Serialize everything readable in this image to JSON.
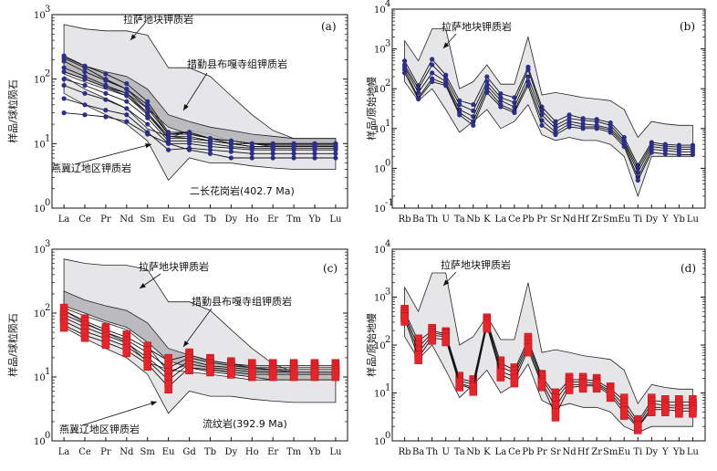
{
  "chart_data": [
    {
      "type": "line",
      "panel": "(a)",
      "xlabel": "",
      "ylabel": "样品/球粒陨石",
      "yscale": "log",
      "ylim": [
        1,
        1000
      ],
      "y_ticks": [
        "10",
        "10",
        "10",
        "10"
      ],
      "y_tick_exponents": [
        "0",
        "1",
        "2",
        "3"
      ],
      "categories": [
        "La",
        "Ce",
        "Pr",
        "Nd",
        "Sm",
        "Eu",
        "Gd",
        "Tb",
        "Dy",
        "Ho",
        "Er",
        "Tm",
        "Yb",
        "Lu"
      ],
      "fields": [
        {
          "name": "拉萨地块钾质岩",
          "upper": [
            700,
            600,
            560,
            560,
            480,
            150,
            150,
            110,
            55,
            28,
            16,
            12,
            12,
            12
          ],
          "lower": [
            120,
            90,
            70,
            55,
            30,
            12,
            16,
            14,
            11,
            10,
            9,
            8,
            8,
            8
          ]
        },
        {
          "name": "措勤县布嘎寺组钾质岩",
          "upper": [
            220,
            160,
            130,
            110,
            70,
            28,
            22,
            18,
            16,
            14,
            13,
            12,
            12,
            12
          ],
          "lower": [
            130,
            100,
            75,
            60,
            35,
            18,
            14,
            12,
            11,
            10,
            9,
            9,
            9,
            9
          ]
        },
        {
          "name": "燕冀辽地区钾质岩",
          "upper": [
            110,
            70,
            50,
            35,
            17,
            13,
            12,
            11,
            10,
            9,
            9,
            9,
            9,
            9
          ],
          "lower": [
            60,
            40,
            28,
            20,
            11,
            2.7,
            6,
            5,
            5,
            4.5,
            4.2,
            4,
            4,
            4
          ]
        }
      ],
      "series": [
        {
          "values": [
            230,
            160,
            120,
            85,
            45,
            15,
            15,
            12,
            11,
            10,
            10,
            10,
            10,
            10
          ]
        },
        {
          "values": [
            210,
            150,
            100,
            70,
            40,
            14,
            15,
            12,
            11,
            10,
            10,
            10,
            10,
            10
          ]
        },
        {
          "values": [
            190,
            130,
            95,
            70,
            35,
            14,
            14,
            12,
            10,
            10,
            9.5,
            9.5,
            9.5,
            9.5
          ]
        },
        {
          "values": [
            150,
            110,
            80,
            60,
            30,
            13,
            13,
            11,
            10,
            9,
            9,
            9,
            9,
            9
          ]
        },
        {
          "values": [
            130,
            100,
            75,
            55,
            28,
            12,
            12,
            11,
            10,
            9,
            9,
            9,
            9,
            9
          ]
        },
        {
          "values": [
            100,
            80,
            60,
            45,
            25,
            11,
            11,
            10,
            9,
            8.5,
            8.5,
            8.5,
            8.5,
            8.5
          ]
        },
        {
          "values": [
            80,
            60,
            48,
            35,
            20,
            10,
            10,
            9,
            8.5,
            8,
            8,
            8,
            8,
            8
          ]
        },
        {
          "values": [
            50,
            40,
            33,
            28,
            15,
            8,
            8.5,
            8,
            7.5,
            7,
            7,
            7,
            7,
            7
          ]
        },
        {
          "values": [
            30,
            28,
            26,
            22,
            14,
            10,
            8,
            7,
            6,
            6,
            6,
            6,
            6,
            6
          ]
        }
      ],
      "annotations": [
        "拉萨地块钾质岩",
        "措勤县布嘎寺组钾质岩",
        "燕冀辽地区钾质岩"
      ],
      "sample_label": "二长花岗岩(402.7 Ma)",
      "colors": {
        "sample": "#2b2e8c",
        "lhasa_fill": "#e6e6e8",
        "dark_fill": "#b3b3b6"
      }
    },
    {
      "type": "line",
      "panel": "(b)",
      "xlabel": "",
      "ylabel": "样品/原始地幔",
      "yscale": "log",
      "ylim": [
        0.1,
        10000
      ],
      "y_ticks": [
        "10",
        "10",
        "10",
        "10",
        "10",
        "10"
      ],
      "y_tick_exponents": [
        "-1",
        "0",
        "1",
        "2",
        "3",
        "4"
      ],
      "categories": [
        "Rb",
        "Ba",
        "Th",
        "U",
        "Ta",
        "Nb",
        "K",
        "La",
        "Ce",
        "Pb",
        "Pr",
        "Sr",
        "Nd",
        "Hf",
        "Zr",
        "Sm",
        "Eu",
        "Ti",
        "Dy",
        "Y",
        "Yb",
        "Lu"
      ],
      "fields": [
        {
          "name": "拉萨地块钾质岩",
          "upper": [
            1600,
            500,
            3200,
            3200,
            100,
            150,
            400,
            130,
            130,
            2000,
            70,
            80,
            70,
            60,
            55,
            50,
            30,
            6,
            15,
            13,
            12,
            12
          ],
          "lower": [
            150,
            50,
            100,
            30,
            8,
            15,
            30,
            10,
            15,
            40,
            7,
            5,
            6,
            5,
            5,
            4,
            2,
            0.2,
            2,
            2,
            2,
            2
          ]
        }
      ],
      "series": [
        {
          "values": [
            500,
            120,
            550,
            220,
            50,
            40,
            200,
            75,
            60,
            350,
            35,
            15,
            22,
            18,
            17,
            14,
            6,
            1.2,
            4.5,
            4,
            3.8,
            3.8
          ]
        },
        {
          "values": [
            400,
            100,
            400,
            180,
            40,
            28,
            150,
            60,
            45,
            300,
            28,
            12,
            18,
            16,
            15,
            12,
            5,
            1,
            4,
            3.6,
            3.4,
            3.4
          ]
        },
        {
          "values": [
            350,
            80,
            250,
            150,
            30,
            20,
            120,
            50,
            35,
            200,
            22,
            10,
            15,
            13,
            12,
            10,
            4.5,
            0.8,
            3.5,
            3.2,
            3,
            3
          ]
        },
        {
          "values": [
            300,
            60,
            180,
            130,
            25,
            15,
            100,
            40,
            28,
            150,
            16,
            8,
            13,
            11,
            11,
            9,
            4,
            0.6,
            3,
            2.8,
            2.6,
            2.6
          ]
        },
        {
          "values": [
            250,
            55,
            150,
            120,
            22,
            12,
            80,
            35,
            25,
            120,
            12,
            7,
            11,
            10,
            10,
            8,
            3.5,
            0.5,
            2.5,
            2.3,
            2.2,
            2.2
          ]
        }
      ],
      "annotations": [
        "拉萨地块钾质岩"
      ],
      "colors": {
        "sample": "#2b2e8c",
        "lhasa_fill": "#e6e6e8"
      }
    },
    {
      "type": "line",
      "panel": "(c)",
      "xlabel": "",
      "ylabel": "样品/球粒陨石",
      "yscale": "log",
      "ylim": [
        1,
        1000
      ],
      "y_ticks": [
        "10",
        "10",
        "10",
        "10"
      ],
      "y_tick_exponents": [
        "0",
        "1",
        "2",
        "3"
      ],
      "categories": [
        "La",
        "Ce",
        "Pr",
        "Nd",
        "Sm",
        "Eu",
        "Gd",
        "Tb",
        "Dy",
        "Ho",
        "Er",
        "Tm",
        "Yb",
        "Lu"
      ],
      "fields": [
        {
          "name": "拉萨地块钾质岩",
          "upper": [
            700,
            600,
            560,
            560,
            480,
            150,
            150,
            110,
            55,
            28,
            16,
            12,
            12,
            12
          ],
          "lower": [
            120,
            90,
            70,
            55,
            30,
            12,
            16,
            14,
            11,
            10,
            9,
            8,
            8,
            8
          ]
        },
        {
          "name": "措勤县布嘎寺组钾质岩",
          "upper": [
            220,
            160,
            130,
            110,
            70,
            28,
            22,
            18,
            16,
            14,
            13,
            12,
            12,
            12
          ],
          "lower": [
            130,
            100,
            75,
            60,
            35,
            18,
            14,
            12,
            11,
            10,
            9,
            9,
            9,
            9
          ]
        },
        {
          "name": "燕冀辽地区钾质岩",
          "upper": [
            110,
            70,
            50,
            35,
            17,
            13,
            12,
            11,
            10,
            9,
            9,
            9,
            9,
            9
          ],
          "lower": [
            60,
            40,
            28,
            20,
            11,
            2.7,
            6,
            5,
            5,
            4.5,
            4.2,
            4,
            4,
            4
          ]
        }
      ],
      "series": [
        {
          "values": [
            110,
            75,
            55,
            42,
            28,
            18,
            22,
            18,
            16,
            15,
            15,
            15,
            15,
            15
          ]
        },
        {
          "values": [
            95,
            68,
            50,
            38,
            24,
            14,
            20,
            17,
            15,
            14,
            14,
            14,
            14,
            14
          ]
        },
        {
          "values": [
            85,
            60,
            45,
            34,
            20,
            11,
            18,
            15,
            14,
            13,
            13,
            13,
            13,
            13
          ]
        },
        {
          "values": [
            75,
            52,
            40,
            30,
            18,
            9,
            16,
            14,
            13,
            12,
            12,
            12,
            12,
            12
          ]
        },
        {
          "values": [
            65,
            45,
            35,
            26,
            16,
            7,
            14,
            13,
            12,
            11,
            11,
            11,
            11,
            11
          ]
        }
      ],
      "annotations": [
        "拉萨地块钾质岩",
        "措勤县布嘎寺组钾质岩",
        "燕冀辽地区钾质岩"
      ],
      "sample_label": "流纹岩(392.9 Ma)",
      "colors": {
        "sample": "#e8232a",
        "lhasa_fill": "#e6e6e8",
        "dark_fill": "#b3b3b6"
      }
    },
    {
      "type": "line",
      "panel": "(d)",
      "xlabel": "",
      "ylabel": "样品/原始地幔",
      "yscale": "log",
      "ylim": [
        1,
        10000
      ],
      "y_ticks": [
        "10",
        "10",
        "10",
        "10",
        "10"
      ],
      "y_tick_exponents": [
        "0",
        "1",
        "2",
        "3",
        "4"
      ],
      "categories": [
        "Rb",
        "Ba",
        "Th",
        "U",
        "Ta",
        "Nb",
        "K",
        "La",
        "Ce",
        "Pb",
        "Pr",
        "Sr",
        "Nd",
        "Hf",
        "Zr",
        "Sm",
        "Eu",
        "Ti",
        "Dy",
        "Y",
        "Yb",
        "Lu"
      ],
      "fields": [
        {
          "name": "拉萨地块钾质岩",
          "upper": [
            1600,
            500,
            3200,
            3200,
            100,
            150,
            400,
            130,
            130,
            2000,
            70,
            80,
            70,
            60,
            55,
            50,
            30,
            6,
            15,
            13,
            12,
            12
          ],
          "lower": [
            150,
            50,
            100,
            30,
            8,
            15,
            30,
            10,
            15,
            40,
            7,
            5,
            6,
            5,
            5,
            4,
            2,
            1.5,
            2,
            2,
            2,
            2
          ]
        }
      ],
      "series": [
        {
          "values": [
            500,
            120,
            200,
            170,
            20,
            17,
            330,
            42,
            30,
            130,
            22,
            9,
            19,
            19,
            18,
            12,
            7,
            2.5,
            7,
            6.5,
            6.5,
            6.5
          ]
        },
        {
          "values": [
            450,
            90,
            180,
            160,
            18,
            15,
            300,
            35,
            26,
            110,
            20,
            7,
            17,
            17,
            16,
            11,
            5.5,
            2.2,
            6,
            5.5,
            5.5,
            5.5
          ]
        },
        {
          "values": [
            400,
            70,
            160,
            150,
            16,
            13,
            280,
            28,
            22,
            95,
            17,
            5,
            15,
            15,
            15,
            10,
            4.5,
            2,
            5,
            5,
            4.8,
            4.8
          ]
        },
        {
          "values": [
            350,
            55,
            140,
            130,
            15,
            12,
            250,
            24,
            18,
            80,
            15,
            3.5,
            13,
            14,
            14,
            9,
            3.8,
            1.9,
            4.5,
            4.5,
            4.2,
            4.2
          ]
        }
      ],
      "annotations": [
        "拉萨地块钾质岩"
      ],
      "colors": {
        "sample": "#e8232a",
        "lhasa_fill": "#e6e6e8"
      }
    }
  ]
}
